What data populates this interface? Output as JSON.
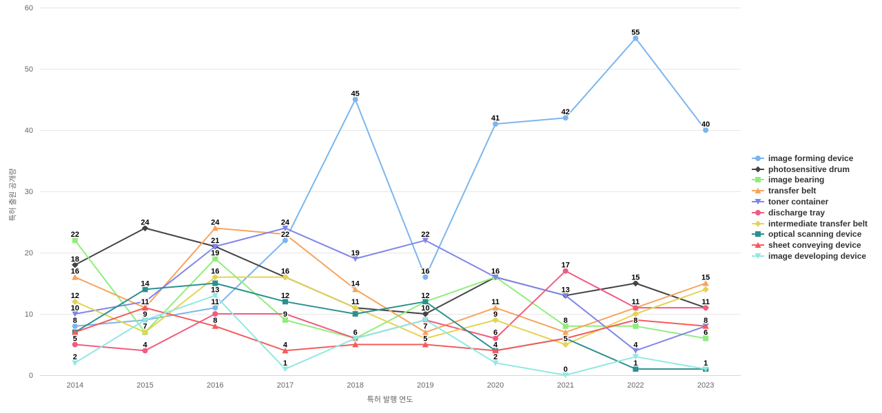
{
  "chart_data": {
    "type": "line",
    "title": "",
    "xlabel": "특허 발행 연도",
    "ylabel": "특허 출원 공개량",
    "ylim": [
      0,
      60
    ],
    "yticks": [
      0,
      10,
      20,
      30,
      40,
      50,
      60
    ],
    "categories": [
      "2014",
      "2015",
      "2016",
      "2017",
      "2018",
      "2019",
      "2020",
      "2021",
      "2022",
      "2023"
    ],
    "grid": true,
    "legend_position": "right",
    "axis_line_color": "#ccd6eb",
    "grid_color": "#e6e6e6",
    "series": [
      {
        "name": "image forming device",
        "color": "#7cb5ec",
        "marker": "circle",
        "values": [
          8,
          9,
          11,
          22,
          45,
          16,
          41,
          42,
          55,
          40
        ]
      },
      {
        "name": "photosensitive drum",
        "color": "#434348",
        "marker": "diamond",
        "values": [
          18,
          24,
          21,
          16,
          11,
          10,
          16,
          13,
          15,
          11
        ]
      },
      {
        "name": "image bearing",
        "color": "#90ed7d",
        "marker": "square",
        "values": [
          22,
          7,
          19,
          9,
          6,
          12,
          16,
          8,
          8,
          6
        ]
      },
      {
        "name": "transfer belt",
        "color": "#f7a35c",
        "marker": "triangle",
        "values": [
          16,
          11,
          24,
          23,
          14,
          7,
          11,
          7,
          11,
          15
        ]
      },
      {
        "name": "toner container",
        "color": "#8085e9",
        "marker": "triangle-down",
        "values": [
          10,
          12,
          21,
          24,
          19,
          22,
          16,
          13,
          4,
          8
        ]
      },
      {
        "name": "discharge tray",
        "color": "#f15c80",
        "marker": "circle",
        "values": [
          5,
          4,
          10,
          10,
          6,
          9,
          6,
          17,
          11,
          11
        ]
      },
      {
        "name": "intermediate transfer belt",
        "color": "#e4d354",
        "marker": "diamond",
        "values": [
          12,
          7,
          16,
          16,
          11,
          6,
          9,
          5,
          10,
          14
        ]
      },
      {
        "name": "optical scanning device",
        "color": "#2b908f",
        "marker": "square",
        "values": [
          7,
          14,
          15,
          12,
          10,
          12,
          4,
          6,
          1,
          1
        ]
      },
      {
        "name": "sheet conveying device",
        "color": "#f45b5b",
        "marker": "triangle",
        "values": [
          7,
          11,
          8,
          4,
          5,
          5,
          4,
          6,
          9,
          8
        ]
      },
      {
        "name": "image developing device",
        "color": "#91e8e1",
        "marker": "triangle-down",
        "values": [
          2,
          9,
          13,
          1,
          6,
          9,
          2,
          0,
          3,
          1
        ]
      }
    ]
  }
}
